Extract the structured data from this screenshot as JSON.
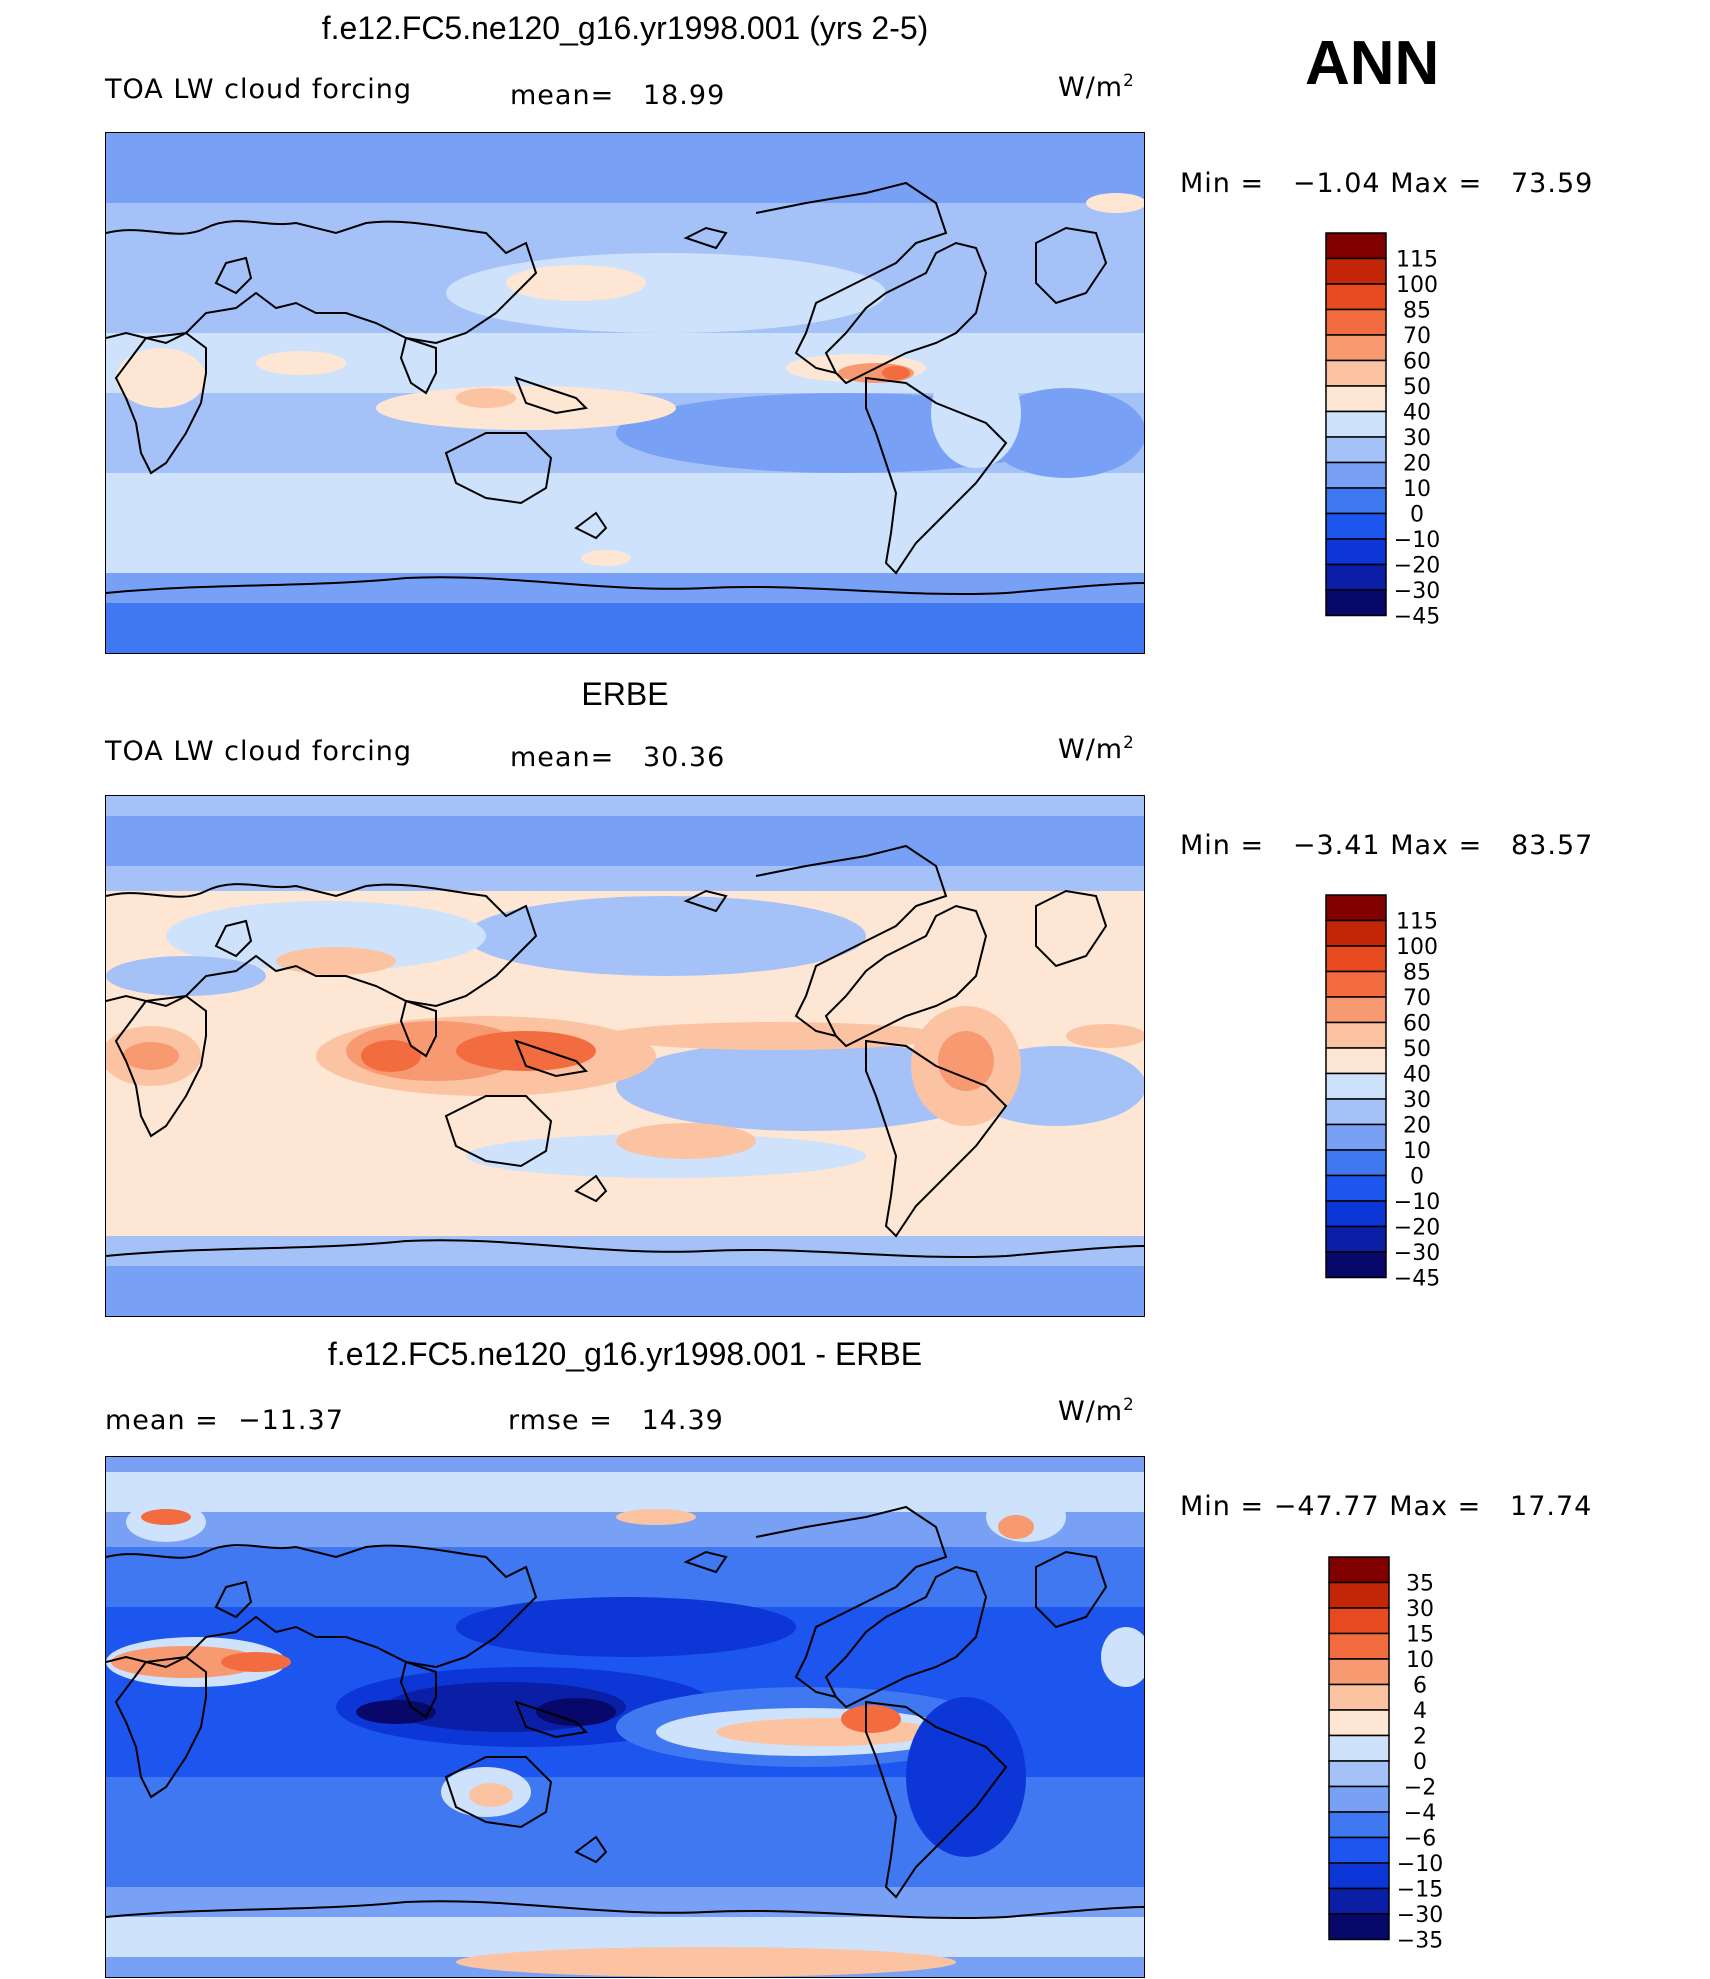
{
  "season": "ANN",
  "units": {
    "base": "W/m",
    "exp": "2"
  },
  "colors": {
    "diverging": [
      "#08086b",
      "#0a1fa6",
      "#0d36d6",
      "#1d55ef",
      "#3f78f0",
      "#78a0f5",
      "#a5c2f8",
      "#cfe2fb",
      "#fde7d4",
      "#fcc3a3",
      "#f79a72",
      "#f26c3f",
      "#e84a1f",
      "#c22606",
      "#800000"
    ],
    "land_outline": "#000000"
  },
  "panels": [
    {
      "id": "model",
      "title": "f.e12.FC5.ne120_g16.yr1998.001 (yrs 2-5)",
      "left_label": "TOA LW cloud forcing",
      "mean_label": "mean=",
      "mean_value": "18.99",
      "rmse_label": "",
      "rmse_value": "",
      "min_label": "Min =",
      "min_value": "−1.04",
      "max_label": "Max =",
      "max_value": "73.59",
      "levels": [
        "115",
        "100",
        "85",
        "70",
        "60",
        "50",
        "40",
        "30",
        "20",
        "10",
        "0",
        "−10",
        "−20",
        "−30",
        "−45"
      ]
    },
    {
      "id": "obs",
      "title": "ERBE",
      "left_label": "TOA LW cloud forcing",
      "mean_label": "mean=",
      "mean_value": "30.36",
      "rmse_label": "",
      "rmse_value": "",
      "min_label": "Min =",
      "min_value": "−3.41",
      "max_label": "Max =",
      "max_value": "83.57",
      "levels": [
        "115",
        "100",
        "85",
        "70",
        "60",
        "50",
        "40",
        "30",
        "20",
        "10",
        "0",
        "−10",
        "−20",
        "−30",
        "−45"
      ]
    },
    {
      "id": "diff",
      "title": "f.e12.FC5.ne120_g16.yr1998.001 - ERBE",
      "left_label": "",
      "mean_label": "mean =",
      "mean_value": "−11.37",
      "rmse_label": "rmse =",
      "rmse_value": "14.39",
      "min_label": "Min =",
      "min_value": "−47.77",
      "max_label": "Max =",
      "max_value": "17.74",
      "levels": [
        "35",
        "30",
        "15",
        "10",
        "6",
        "4",
        "2",
        "0",
        "−2",
        "−4",
        "−6",
        "−10",
        "−15",
        "−30",
        "−35"
      ]
    }
  ],
  "chart_data": [
    {
      "type": "heatmap",
      "title": "f.e12.FC5.ne120_g16.yr1998.001 (yrs 2-5)",
      "subtitle": "TOA LW cloud forcing",
      "units": "W/m2",
      "mean": 18.99,
      "min": -1.04,
      "max": 73.59,
      "contour_levels": [
        -45,
        -30,
        -20,
        -10,
        0,
        10,
        20,
        30,
        40,
        50,
        60,
        70,
        85,
        100,
        115
      ]
    },
    {
      "type": "heatmap",
      "title": "ERBE",
      "subtitle": "TOA LW cloud forcing",
      "units": "W/m2",
      "mean": 30.36,
      "min": -3.41,
      "max": 83.57,
      "contour_levels": [
        -45,
        -30,
        -20,
        -10,
        0,
        10,
        20,
        30,
        40,
        50,
        60,
        70,
        85,
        100,
        115
      ]
    },
    {
      "type": "heatmap",
      "title": "f.e12.FC5.ne120_g16.yr1998.001 - ERBE",
      "units": "W/m2",
      "mean": -11.37,
      "rmse": 14.39,
      "min": -47.77,
      "max": 17.74,
      "contour_levels": [
        -35,
        -30,
        -15,
        -10,
        -6,
        -4,
        -2,
        0,
        2,
        4,
        6,
        10,
        15,
        30,
        35
      ]
    }
  ]
}
